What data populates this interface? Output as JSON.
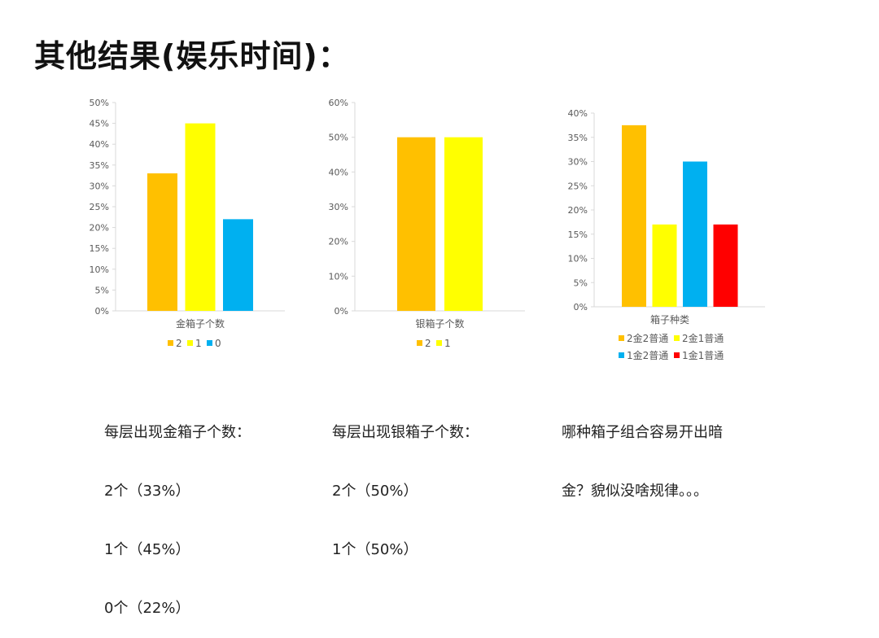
{
  "title": "其他结果(娱乐时间)：",
  "captions": [
    [
      "每层出现金箱子个数：",
      "2个（33%）",
      "1个（45%）",
      "0个（22%）"
    ],
    [
      "每层出现银箱子个数：",
      "2个（50%）",
      "1个（50%）"
    ],
    [
      "哪种箱子组合容易开出暗",
      "金？貌似没啥规律。。。"
    ]
  ],
  "chart_data": [
    {
      "type": "bar",
      "title": "",
      "xlabel": "金箱子个数",
      "ylabel": "",
      "ylim": [
        0,
        50
      ],
      "yticks": [
        0,
        5,
        10,
        15,
        20,
        25,
        30,
        35,
        40,
        45,
        50
      ],
      "tick_labels": [
        "0%",
        "5%",
        "10%",
        "15%",
        "20%",
        "25%",
        "30%",
        "35%",
        "40%",
        "45%",
        "50%"
      ],
      "series": [
        {
          "name": "2",
          "values": [
            33
          ],
          "color": "#FFC000"
        },
        {
          "name": "1",
          "values": [
            45
          ],
          "color": "#FFFF00"
        },
        {
          "name": "0",
          "values": [
            22
          ],
          "color": "#00B0F0"
        }
      ],
      "legend_position": "bottom"
    },
    {
      "type": "bar",
      "title": "",
      "xlabel": "银箱子个数",
      "ylabel": "",
      "ylim": [
        0,
        60
      ],
      "yticks": [
        0,
        10,
        20,
        30,
        40,
        50,
        60
      ],
      "tick_labels": [
        "0%",
        "10%",
        "20%",
        "30%",
        "40%",
        "50%",
        "60%"
      ],
      "series": [
        {
          "name": "2",
          "values": [
            50
          ],
          "color": "#FFC000"
        },
        {
          "name": "1",
          "values": [
            50
          ],
          "color": "#FFFF00"
        }
      ],
      "legend_position": "bottom"
    },
    {
      "type": "bar",
      "title": "",
      "xlabel": "箱子种类",
      "ylabel": "",
      "ylim": [
        0,
        40
      ],
      "yticks": [
        0,
        5,
        10,
        15,
        20,
        25,
        30,
        35,
        40
      ],
      "tick_labels": [
        "0%",
        "5%",
        "10%",
        "15%",
        "20%",
        "25%",
        "30%",
        "35%",
        "40%"
      ],
      "series": [
        {
          "name": "2金2普通",
          "values": [
            37.5
          ],
          "color": "#FFC000"
        },
        {
          "name": "2金1普通",
          "values": [
            17
          ],
          "color": "#FFFF00"
        },
        {
          "name": "1金2普通",
          "values": [
            30
          ],
          "color": "#00B0F0"
        },
        {
          "name": "1金1普通",
          "values": [
            17
          ],
          "color": "#FF0000"
        }
      ],
      "legend_position": "bottom"
    }
  ]
}
